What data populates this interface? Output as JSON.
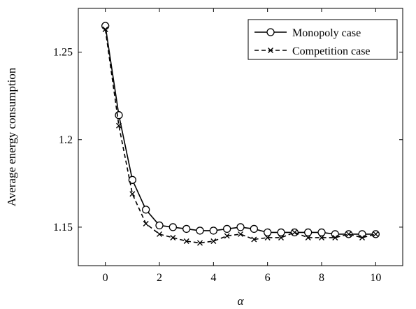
{
  "chart_data": {
    "type": "line",
    "title": "",
    "xlabel": "α",
    "ylabel": "Average energy consumption",
    "xlim": [
      -1,
      11
    ],
    "ylim": [
      1.128,
      1.275
    ],
    "xticks": [
      0,
      2,
      4,
      6,
      8,
      10
    ],
    "xtick_labels": [
      "0",
      "2",
      "4",
      "6",
      "8",
      "10"
    ],
    "yticks": [
      1.15,
      1.2,
      1.25
    ],
    "ytick_labels": [
      "1.15",
      "1.2",
      "1.25"
    ],
    "grid": false,
    "legend_position": "top-right",
    "x": [
      0,
      0.5,
      1,
      1.5,
      2,
      2.5,
      3,
      3.5,
      4,
      4.5,
      5,
      5.5,
      6,
      6.5,
      7,
      7.5,
      8,
      8.5,
      9,
      9.5,
      10
    ],
    "series": [
      {
        "name": "Monopoly case",
        "style": "solid",
        "marker": "circle",
        "color": "#000000",
        "values": [
          1.265,
          1.214,
          1.177,
          1.16,
          1.151,
          1.15,
          1.149,
          1.148,
          1.148,
          1.149,
          1.15,
          1.149,
          1.147,
          1.147,
          1.147,
          1.147,
          1.147,
          1.146,
          1.146,
          1.146,
          1.146
        ]
      },
      {
        "name": "Competition case",
        "style": "dashed",
        "marker": "x",
        "color": "#000000",
        "values": [
          1.263,
          1.208,
          1.169,
          1.152,
          1.146,
          1.144,
          1.142,
          1.141,
          1.142,
          1.145,
          1.146,
          1.143,
          1.144,
          1.144,
          1.147,
          1.144,
          1.144,
          1.144,
          1.146,
          1.144,
          1.146
        ]
      }
    ]
  }
}
